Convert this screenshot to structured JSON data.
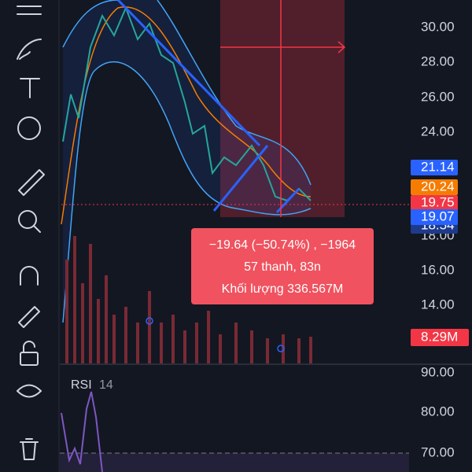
{
  "price_axis": [
    "30.00",
    "28.00",
    "26.00",
    "24.00",
    "18.00",
    "16.00",
    "14.00"
  ],
  "badges": [
    {
      "text": "21.14",
      "color": "#2962ff"
    },
    {
      "text": "20.24",
      "color": "#f57c00"
    },
    {
      "text": "19.75",
      "color": "#f23645"
    },
    {
      "text": "19.07",
      "color": "#2962ff"
    },
    {
      "text": "18.54",
      "color": "#1e3a8a"
    }
  ],
  "tooltip": [
    "−19.64 (−50.74%) , −1964",
    "57 thanh, 83n",
    "Khối lượng 336.567M"
  ],
  "volume_badge": "8.29M",
  "rsi": {
    "title": "RSI",
    "length": "14",
    "axis": [
      "90.00",
      "80.00",
      "70.00"
    ]
  }
}
